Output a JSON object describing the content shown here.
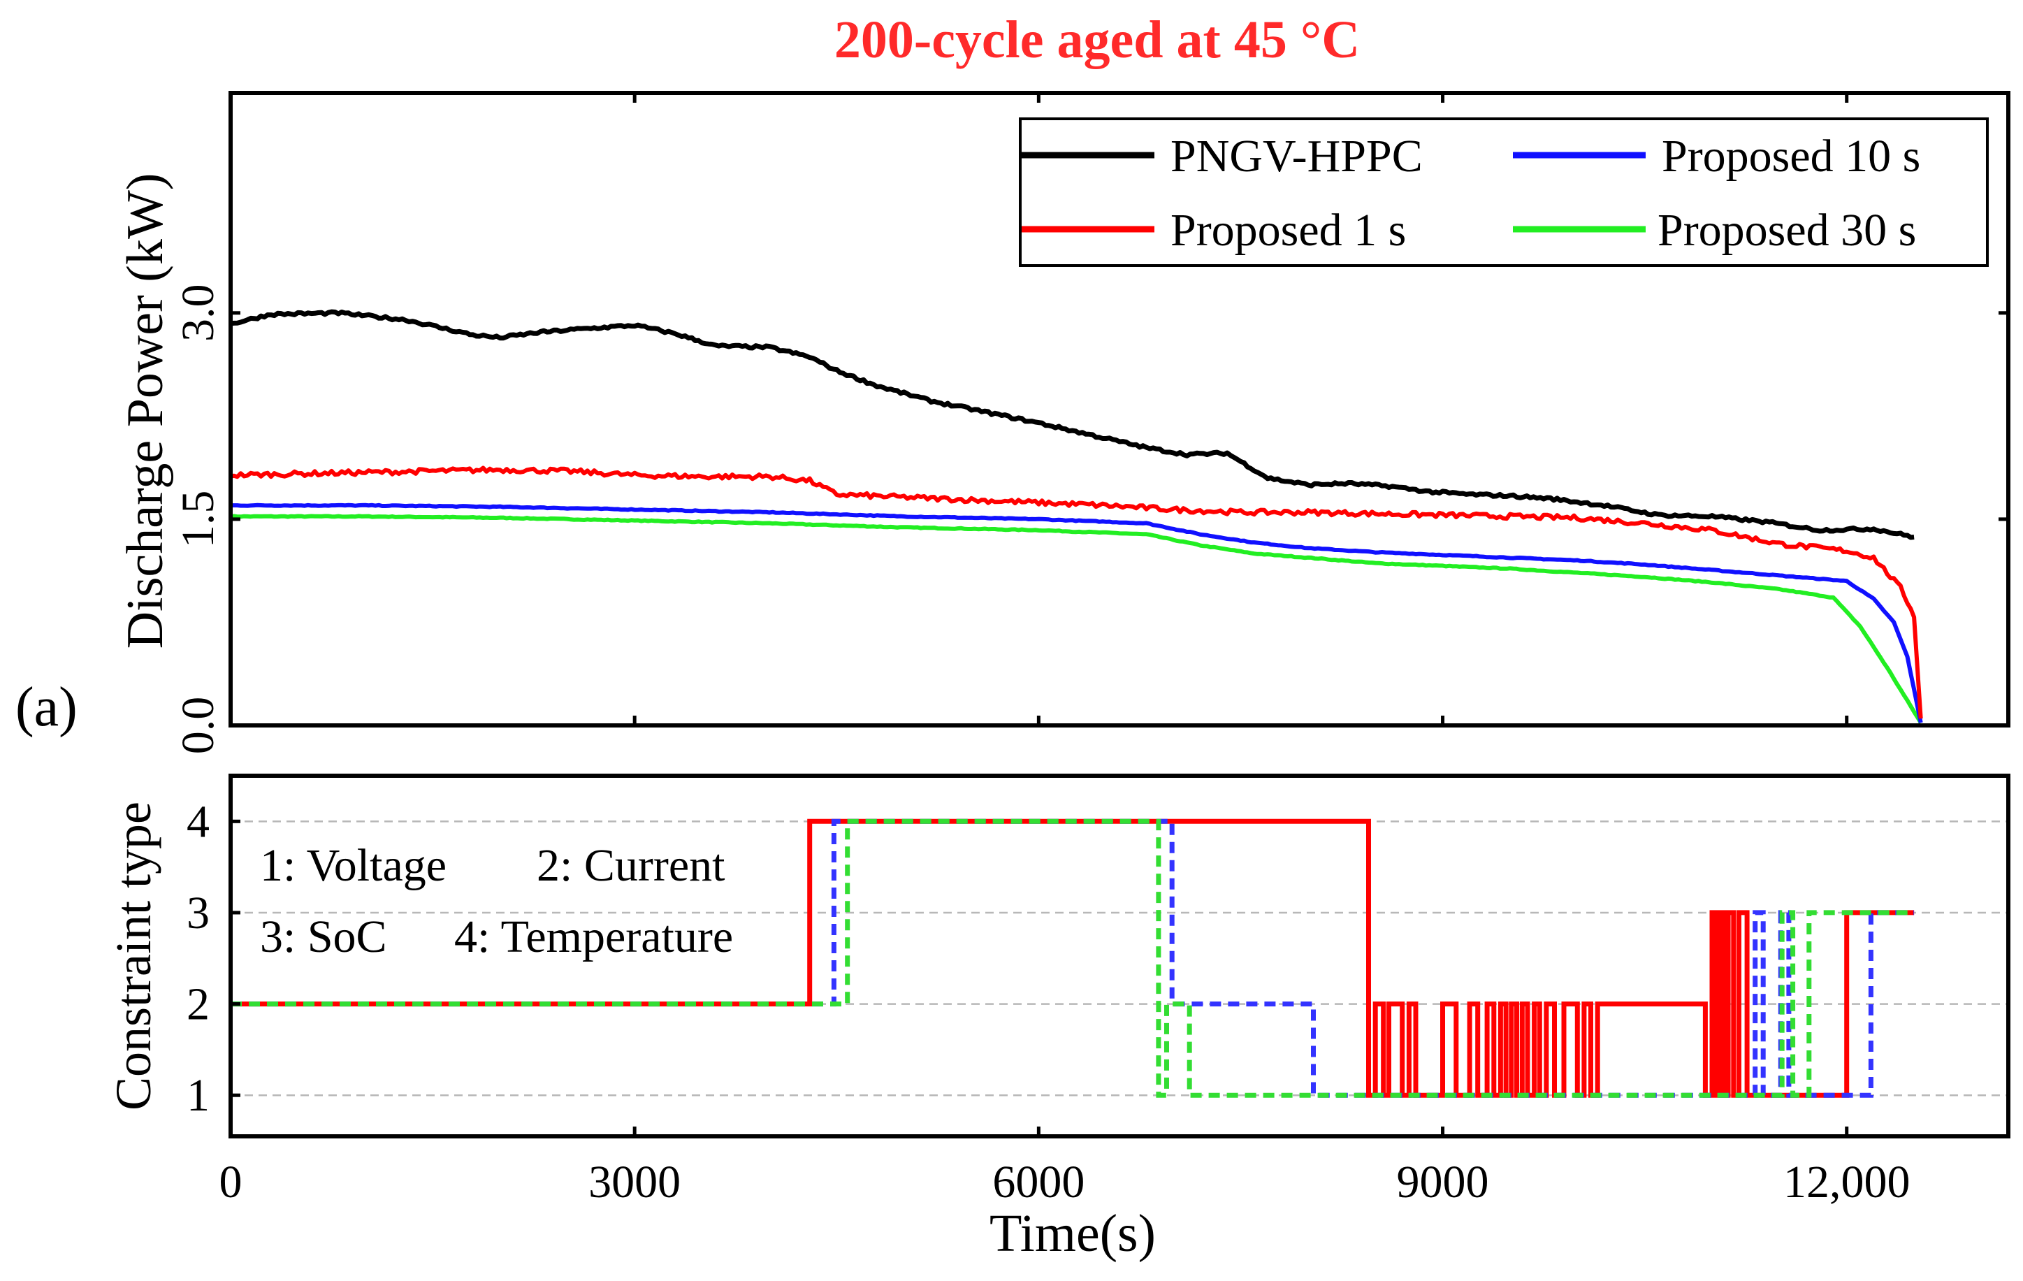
{
  "chart_data": [
    {
      "type": "line",
      "panel_label": "(a)",
      "title": "200-cycle aged at 45 °C",
      "title_color": "#ff2a2a",
      "ylabel": "Discharge Power (kW)",
      "xlabel": "",
      "xlim": [
        0,
        13200
      ],
      "ylim": [
        0,
        4.6
      ],
      "yticks": [
        0,
        1.5,
        3.0
      ],
      "ytick_labels": [
        "0.0",
        "1.5",
        "3.0"
      ],
      "xticks": [
        3000,
        6000,
        9000,
        12000
      ],
      "grid": false,
      "legend_position": "top-right",
      "series": [
        {
          "name": "PNGV-HPPC",
          "color": "#000000",
          "x": [
            0,
            300,
            800,
            1300,
            1800,
            2000,
            2300,
            2700,
            3000,
            3300,
            3600,
            4000,
            4300,
            4500,
            4800,
            5200,
            5600,
            6000,
            6400,
            6800,
            7100,
            7400,
            7700,
            8000,
            8300,
            8600,
            8900,
            9200,
            9500,
            9800,
            10200,
            10600,
            11000,
            11400,
            11800,
            12200,
            12500
          ],
          "y": [
            2.92,
            2.99,
            3.0,
            2.95,
            2.84,
            2.82,
            2.86,
            2.89,
            2.91,
            2.85,
            2.76,
            2.75,
            2.68,
            2.58,
            2.47,
            2.36,
            2.28,
            2.2,
            2.11,
            2.02,
            1.97,
            1.98,
            1.8,
            1.75,
            1.76,
            1.74,
            1.7,
            1.68,
            1.67,
            1.65,
            1.6,
            1.53,
            1.52,
            1.48,
            1.42,
            1.43,
            1.37
          ]
        },
        {
          "name": "Proposed 1 s",
          "color": "#ff0000",
          "x": [
            0,
            500,
            1000,
            1500,
            2000,
            2500,
            3000,
            3500,
            4000,
            4300,
            4500,
            5000,
            5500,
            6000,
            6500,
            7000,
            7500,
            8000,
            8500,
            9000,
            9500,
            10000,
            10500,
            11000,
            11500,
            12000,
            12200,
            12400,
            12500,
            12550
          ],
          "y": [
            1.82,
            1.83,
            1.84,
            1.85,
            1.86,
            1.85,
            1.82,
            1.81,
            1.81,
            1.78,
            1.68,
            1.66,
            1.64,
            1.62,
            1.6,
            1.57,
            1.55,
            1.55,
            1.54,
            1.53,
            1.52,
            1.51,
            1.47,
            1.42,
            1.32,
            1.27,
            1.22,
            1.0,
            0.8,
            0.05
          ]
        },
        {
          "name": "Proposed 10 s",
          "color": "#1010ff",
          "x": [
            0,
            1000,
            2000,
            3000,
            4000,
            5000,
            6000,
            6800,
            7200,
            7600,
            8000,
            8500,
            9000,
            9500,
            10000,
            10500,
            11000,
            11500,
            12000,
            12200,
            12350,
            12450,
            12550
          ],
          "y": [
            1.6,
            1.6,
            1.59,
            1.57,
            1.55,
            1.52,
            1.5,
            1.47,
            1.39,
            1.33,
            1.29,
            1.26,
            1.24,
            1.22,
            1.2,
            1.17,
            1.13,
            1.09,
            1.05,
            0.92,
            0.75,
            0.5,
            0.02
          ]
        },
        {
          "name": "Proposed 30 s",
          "color": "#22ee22",
          "x": [
            0,
            1000,
            2000,
            3000,
            4000,
            5000,
            6000,
            6800,
            7200,
            7600,
            8000,
            8500,
            9000,
            9500,
            10000,
            10500,
            11000,
            11500,
            11900,
            12100,
            12300,
            12450,
            12550
          ],
          "y": [
            1.52,
            1.52,
            1.51,
            1.49,
            1.47,
            1.44,
            1.42,
            1.39,
            1.31,
            1.25,
            1.22,
            1.18,
            1.16,
            1.14,
            1.11,
            1.08,
            1.04,
            0.99,
            0.93,
            0.72,
            0.42,
            0.18,
            0.02
          ]
        }
      ]
    },
    {
      "type": "line",
      "title": "",
      "ylabel": "Constraint type",
      "xlabel": "Time(s)",
      "xlim": [
        0,
        13200
      ],
      "ylim": [
        0.55,
        4.5
      ],
      "yticks": [
        1,
        2,
        3,
        4
      ],
      "xticks": [
        0,
        3000,
        6000,
        9000,
        12000
      ],
      "xtick_labels": [
        "0",
        "3000",
        "6000",
        "9000",
        "12,000"
      ],
      "grid": true,
      "annotations": [
        "1: Voltage",
        "2: Current",
        "3: SoC",
        "4: Temperature"
      ],
      "series": [
        {
          "name": "Proposed 1 s",
          "color": "#ff0000",
          "style": "solid",
          "x": [
            0,
            4300,
            4300,
            8450,
            8450,
            8500,
            8500,
            8560,
            8560,
            8600,
            8600,
            8700,
            8700,
            8750,
            8750,
            8800,
            8800,
            9000,
            9000,
            9100,
            9100,
            9200,
            9200,
            9260,
            9260,
            9330,
            9330,
            9380,
            9380,
            9430,
            9430,
            9470,
            9470,
            9510,
            9510,
            9550,
            9550,
            9590,
            9590,
            9630,
            9630,
            9680,
            9680,
            9720,
            9720,
            9770,
            9770,
            9830,
            9830,
            9900,
            9900,
            10000,
            10000,
            10050,
            10050,
            10100,
            10100,
            10150,
            10150,
            10950,
            10950,
            11000,
            11000,
            11030,
            11030,
            11060,
            11060,
            11090,
            11090,
            11120,
            11120,
            11160,
            11160,
            11200,
            11200,
            11260,
            11260,
            11300,
            11300,
            12000,
            12000,
            12500
          ],
          "y": [
            2,
            2,
            4,
            4,
            1,
            1,
            2,
            2,
            1,
            1,
            2,
            2,
            1,
            1,
            2,
            2,
            1,
            1,
            2,
            2,
            1,
            1,
            2,
            2,
            1,
            1,
            2,
            2,
            1,
            1,
            2,
            2,
            1,
            1,
            2,
            2,
            1,
            1,
            2,
            2,
            1,
            1,
            2,
            2,
            1,
            1,
            2,
            2,
            1,
            1,
            2,
            2,
            1,
            1,
            2,
            2,
            1,
            1,
            2,
            2,
            1,
            1,
            3,
            3,
            1,
            1,
            3,
            3,
            1,
            1,
            3,
            3,
            1,
            1,
            3,
            3,
            1,
            1,
            1,
            1,
            3,
            3
          ]
        },
        {
          "name": "Proposed 10 s",
          "color": "#3333ff",
          "style": "dashed",
          "x": [
            0,
            4480,
            4480,
            6990,
            6990,
            8040,
            8040,
            11320,
            11320,
            11380,
            11380,
            11510,
            11510,
            11570,
            11570,
            12180,
            12180,
            12500
          ],
          "y": [
            2,
            2,
            4,
            4,
            2,
            2,
            1,
            1,
            3,
            3,
            1,
            1,
            3,
            3,
            1,
            1,
            3,
            3
          ]
        },
        {
          "name": "Proposed 30 s",
          "color": "#33dd33",
          "style": "dashed",
          "x": [
            0,
            4580,
            4580,
            6890,
            6890,
            6950,
            6950,
            7120,
            7120,
            7150,
            7150,
            11520,
            11520,
            11600,
            11600,
            11720,
            11720,
            11800,
            11800,
            12500
          ],
          "y": [
            2,
            2,
            4,
            4,
            1,
            1,
            2,
            2,
            1,
            1,
            1,
            1,
            3,
            3,
            1,
            1,
            3,
            3,
            3,
            3
          ]
        }
      ]
    }
  ]
}
